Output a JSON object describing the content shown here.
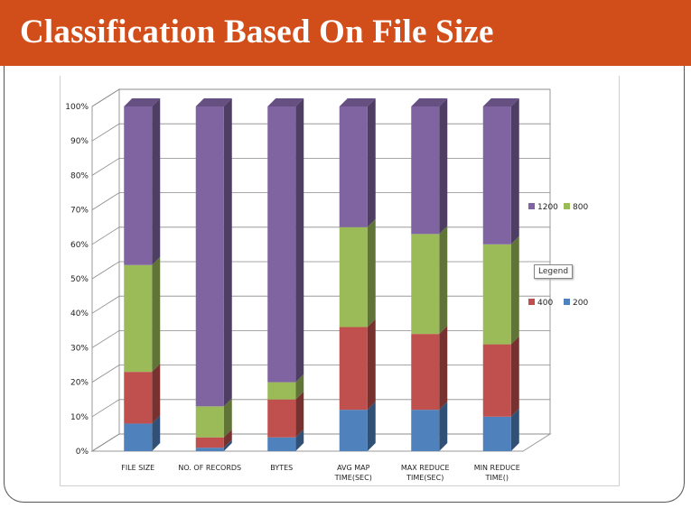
{
  "slide": {
    "title": "Classification Based On File Size"
  },
  "legend_tooltip": "Legend",
  "chart_data": {
    "type": "bar",
    "stacked": true,
    "percent_stacked": true,
    "three_d": true,
    "title": "",
    "xlabel": "",
    "ylabel": "",
    "ylim": [
      0,
      100
    ],
    "yticks": [
      "0%",
      "10%",
      "20%",
      "30%",
      "40%",
      "50%",
      "60%",
      "70%",
      "80%",
      "90%",
      "100%"
    ],
    "categories": [
      [
        "FILE SIZE"
      ],
      [
        "NO. OF RECORDS"
      ],
      [
        "BYTES"
      ],
      [
        "AVG MAP",
        "TIME(SEC)"
      ],
      [
        "MAX REDUCE",
        "TIME(SEC)"
      ],
      [
        "MIN REDUCE",
        "TIME()"
      ]
    ],
    "series": [
      {
        "name": "200",
        "color": "#4f81bd",
        "values": [
          8,
          1,
          4,
          12,
          12,
          10
        ]
      },
      {
        "name": "400",
        "color": "#c0504d",
        "values": [
          15,
          3,
          11,
          24,
          22,
          21
        ]
      },
      {
        "name": "800",
        "color": "#9bbb59",
        "values": [
          31,
          9,
          5,
          29,
          29,
          29
        ]
      },
      {
        "name": "1200",
        "color": "#8064a2",
        "values": [
          46,
          87,
          80,
          35,
          37,
          40
        ]
      }
    ],
    "legend": {
      "placement": "right",
      "rows": [
        [
          "1200",
          "800"
        ],
        [
          "400",
          "200"
        ]
      ]
    },
    "grid": true
  }
}
